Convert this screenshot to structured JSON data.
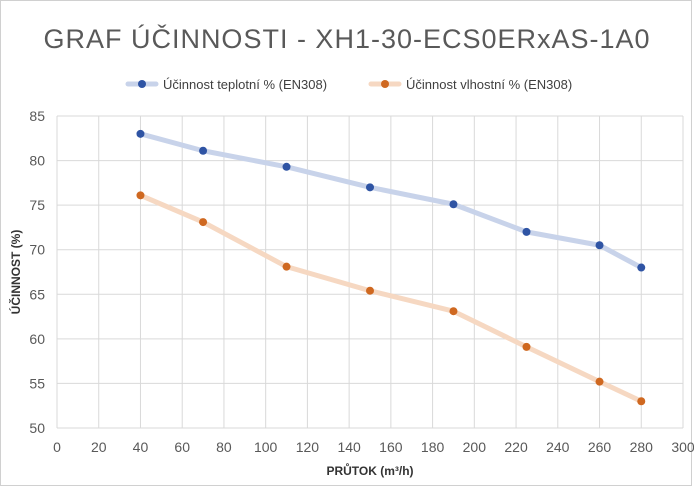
{
  "chart_data": {
    "type": "line",
    "title": "GRAF ÚČINNOSTI - XH1-30-ECS0ERxAS-1A0",
    "xlabel": "PRŮTOK (m³/h)",
    "ylabel": "ÚČINNOST (%)",
    "xlim": [
      0,
      300
    ],
    "ylim": [
      50,
      85
    ],
    "xticks": [
      0,
      20,
      40,
      60,
      80,
      100,
      120,
      140,
      160,
      180,
      200,
      220,
      240,
      260,
      280,
      300
    ],
    "yticks": [
      50,
      55,
      60,
      65,
      70,
      75,
      80,
      85
    ],
    "grid": true,
    "legend_position": "top",
    "series": [
      {
        "name": "Účinnost teplotní % (EN308)",
        "line_color": "#c8d3ea",
        "marker_color": "#2f54a4",
        "x": [
          40,
          70,
          110,
          150,
          190,
          225,
          260,
          280
        ],
        "y": [
          83,
          81.1,
          79.3,
          77,
          75.1,
          72,
          70.5,
          68
        ]
      },
      {
        "name": "Účinnost vlhostní % (EN308)",
        "line_color": "#f6d8c2",
        "marker_color": "#cf6820",
        "x": [
          40,
          70,
          110,
          150,
          190,
          225,
          260,
          280
        ],
        "y": [
          76.1,
          73.1,
          68.1,
          65.4,
          63.1,
          59.1,
          55.2,
          53
        ]
      }
    ]
  }
}
